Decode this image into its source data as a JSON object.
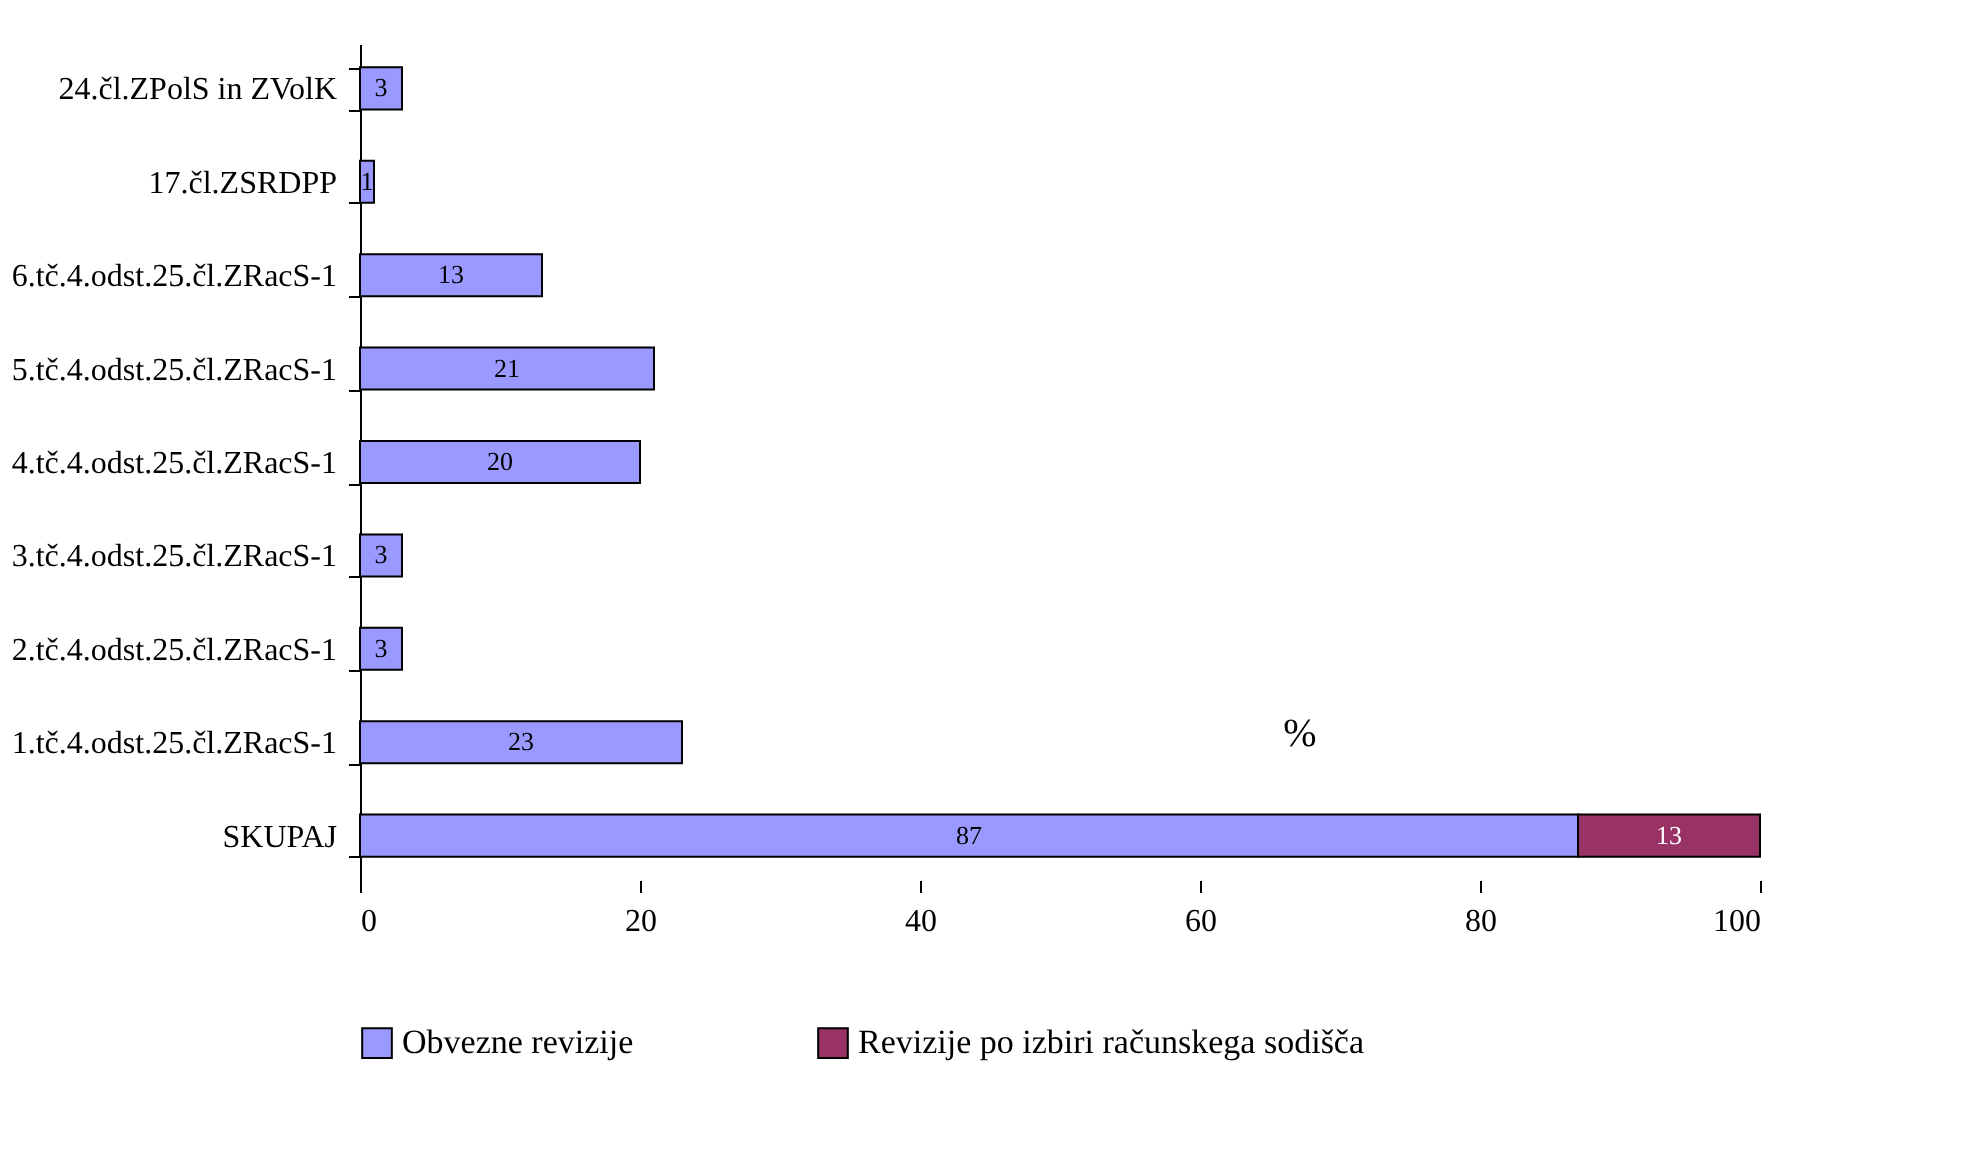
{
  "chart_data": {
    "type": "bar",
    "orientation": "horizontal",
    "stacked": true,
    "categories": [
      "24.čl.ZPolS in ZVolK",
      "17.čl.ZSRDPP",
      "6.tč.4.odst.25.čl.ZRacS-1",
      "5.tč.4.odst.25.čl.ZRacS-1",
      "4.tč.4.odst.25.čl.ZRacS-1",
      "3.tč.4.odst.25.čl.ZRacS-1",
      "2.tč.4.odst.25.čl.ZRacS-1",
      "1.tč.4.odst.25.čl.ZRacS-1",
      "SKUPAJ"
    ],
    "series": [
      {
        "name": "Obvezne revizije",
        "color": "#9999ff",
        "values": [
          3,
          1,
          13,
          21,
          20,
          3,
          3,
          23,
          87
        ]
      },
      {
        "name": "Revizije po izbiri računskega sodišča",
        "color": "#993366",
        "values": [
          null,
          null,
          null,
          null,
          null,
          null,
          null,
          null,
          13
        ]
      }
    ],
    "xlim": [
      0,
      100
    ],
    "xticks": [
      0,
      20,
      40,
      60,
      80,
      100
    ],
    "data_labels": true,
    "legend": "bottom",
    "annotations": [
      "%"
    ]
  }
}
